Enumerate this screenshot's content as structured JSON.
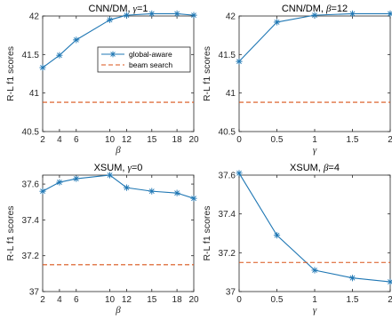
{
  "colors": {
    "global_aware": "#1f77b4",
    "beam_search": "#d95319"
  },
  "legend": {
    "placement": "inside-center-right",
    "entries": [
      "global-aware",
      "beam search"
    ]
  },
  "chart_data": [
    {
      "type": "line",
      "title_parts": [
        "CNN/DM, ",
        "γ",
        "=1"
      ],
      "xlabel": "β",
      "ylabel": "R-L f1 scores",
      "xlim": [
        2,
        20
      ],
      "ylim": [
        40.5,
        42
      ],
      "xticks": [
        2,
        4,
        6,
        10,
        12,
        15,
        18,
        20
      ],
      "yticks": [
        40.5,
        41,
        41.5,
        42
      ],
      "ytick_labels": [
        "40.5",
        "41",
        "41.5",
        "42"
      ],
      "show_legend": true,
      "series": [
        {
          "name": "global-aware",
          "style": "solid-star",
          "x": [
            2,
            4,
            6,
            10,
            12,
            15,
            18,
            20
          ],
          "y": [
            41.33,
            41.49,
            41.69,
            41.95,
            42.01,
            42.03,
            42.03,
            42.01
          ]
        },
        {
          "name": "beam search",
          "style": "dashed",
          "x": [
            2,
            20
          ],
          "y": [
            40.88,
            40.88
          ]
        }
      ]
    },
    {
      "type": "line",
      "title_parts": [
        "CNN/DM, ",
        "β",
        "=12"
      ],
      "xlabel": "γ",
      "ylabel": "R-L f1 scores",
      "xlim": [
        0,
        2
      ],
      "ylim": [
        40.5,
        42
      ],
      "xticks": [
        0,
        0.5,
        1,
        1.5,
        2
      ],
      "yticks": [
        40.5,
        41,
        41.5,
        42
      ],
      "ytick_labels": [
        "40.5",
        "41",
        "41.5",
        "42"
      ],
      "show_legend": false,
      "series": [
        {
          "name": "global-aware",
          "style": "solid-star",
          "x": [
            0,
            0.5,
            1,
            1.5,
            2
          ],
          "y": [
            41.41,
            41.92,
            42.01,
            42.03,
            42.03
          ]
        },
        {
          "name": "beam search",
          "style": "dashed",
          "x": [
            0,
            2
          ],
          "y": [
            40.88,
            40.88
          ]
        }
      ]
    },
    {
      "type": "line",
      "title_parts": [
        "XSUM, ",
        "γ",
        "=0"
      ],
      "xlabel": "β",
      "ylabel": "R-L f1 scores",
      "xlim": [
        2,
        20
      ],
      "ylim": [
        37,
        37.65
      ],
      "xticks": [
        2,
        4,
        6,
        10,
        12,
        15,
        18,
        20
      ],
      "yticks": [
        37,
        37.2,
        37.4,
        37.6
      ],
      "ytick_labels": [
        "37",
        "37.2",
        "37.4",
        "37.6"
      ],
      "show_legend": false,
      "series": [
        {
          "name": "global-aware",
          "style": "solid-star",
          "x": [
            2,
            4,
            6,
            10,
            12,
            15,
            18,
            20
          ],
          "y": [
            37.56,
            37.61,
            37.63,
            37.65,
            37.58,
            37.56,
            37.55,
            37.52
          ]
        },
        {
          "name": "beam search",
          "style": "dashed",
          "x": [
            2,
            20
          ],
          "y": [
            37.15,
            37.15
          ]
        }
      ]
    },
    {
      "type": "line",
      "title_parts": [
        "XSUM, ",
        "β",
        "=4"
      ],
      "xlabel": "γ",
      "ylabel": "R-L f1 scores",
      "xlim": [
        0,
        2
      ],
      "ylim": [
        37,
        37.6
      ],
      "xticks": [
        0,
        0.5,
        1,
        1.5,
        2
      ],
      "yticks": [
        37,
        37.2,
        37.4,
        37.6
      ],
      "ytick_labels": [
        "37",
        "37.2",
        "37.4",
        "37.6"
      ],
      "show_legend": false,
      "series": [
        {
          "name": "global-aware",
          "style": "solid-star",
          "x": [
            0,
            0.5,
            1,
            1.5,
            2
          ],
          "y": [
            37.61,
            37.29,
            37.11,
            37.07,
            37.05
          ]
        },
        {
          "name": "beam search",
          "style": "dashed",
          "x": [
            0,
            2
          ],
          "y": [
            37.15,
            37.15
          ]
        }
      ]
    }
  ]
}
